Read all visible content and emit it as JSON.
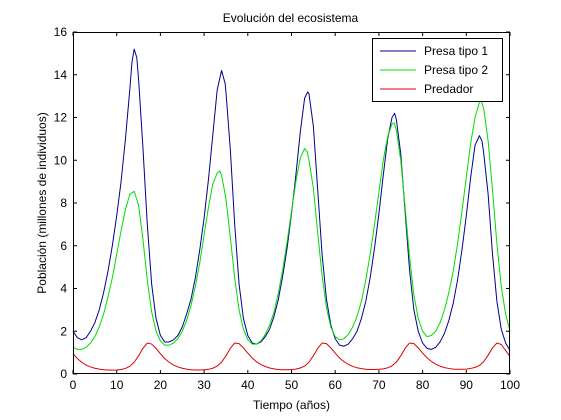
{
  "chart_data": {
    "type": "line",
    "title": "Evolución del ecosistema",
    "xlabel": "Tiempo (años)",
    "ylabel": "Población (millones de individuos)",
    "xlim": [
      0,
      100
    ],
    "ylim": [
      0,
      16
    ],
    "xticks": [
      0,
      10,
      20,
      30,
      40,
      50,
      60,
      70,
      80,
      90,
      100
    ],
    "yticks": [
      0,
      2,
      4,
      6,
      8,
      10,
      12,
      14,
      16
    ],
    "grid": false,
    "legend_position": "top-right",
    "series": [
      {
        "name": "Presa tipo 1",
        "color": "#00008b",
        "points": [
          [
            0,
            2.0
          ],
          [
            1,
            1.7
          ],
          [
            2,
            1.6
          ],
          [
            3,
            1.7
          ],
          [
            4,
            2.0
          ],
          [
            5,
            2.4
          ],
          [
            6,
            3.0
          ],
          [
            7,
            3.8
          ],
          [
            8,
            4.8
          ],
          [
            9,
            6.0
          ],
          [
            10,
            7.4
          ],
          [
            11,
            9.0
          ],
          [
            12,
            11.0
          ],
          [
            13,
            13.3
          ],
          [
            13.5,
            14.6
          ],
          [
            14,
            15.2
          ],
          [
            14.6,
            14.8
          ],
          [
            15,
            13.8
          ],
          [
            16,
            10.6
          ],
          [
            17,
            7.0
          ],
          [
            18,
            4.2
          ],
          [
            19,
            2.6
          ],
          [
            20,
            1.8
          ],
          [
            21,
            1.5
          ],
          [
            22,
            1.5
          ],
          [
            23,
            1.6
          ],
          [
            24,
            1.8
          ],
          [
            25,
            2.2
          ],
          [
            26,
            2.8
          ],
          [
            27,
            3.5
          ],
          [
            28,
            4.5
          ],
          [
            29,
            5.8
          ],
          [
            30,
            7.3
          ],
          [
            31,
            9.1
          ],
          [
            32,
            11.2
          ],
          [
            33,
            13.3
          ],
          [
            34,
            14.2
          ],
          [
            34.8,
            13.6
          ],
          [
            35,
            13.2
          ],
          [
            36,
            10.5
          ],
          [
            37,
            7.0
          ],
          [
            38,
            4.2
          ],
          [
            39,
            2.6
          ],
          [
            40,
            1.8
          ],
          [
            41,
            1.45
          ],
          [
            42,
            1.4
          ],
          [
            43,
            1.5
          ],
          [
            44,
            1.75
          ],
          [
            45,
            2.1
          ],
          [
            46,
            2.7
          ],
          [
            47,
            3.5
          ],
          [
            48,
            4.6
          ],
          [
            49,
            5.9
          ],
          [
            50,
            7.5
          ],
          [
            51,
            9.3
          ],
          [
            52,
            11.3
          ],
          [
            53,
            12.9
          ],
          [
            53.7,
            13.2
          ],
          [
            54,
            13.1
          ],
          [
            55,
            11.6
          ],
          [
            56,
            8.6
          ],
          [
            57,
            5.6
          ],
          [
            58,
            3.5
          ],
          [
            59,
            2.3
          ],
          [
            60,
            1.65
          ],
          [
            61,
            1.35
          ],
          [
            62,
            1.3
          ],
          [
            63,
            1.4
          ],
          [
            64,
            1.65
          ],
          [
            65,
            2.0
          ],
          [
            66,
            2.6
          ],
          [
            67,
            3.4
          ],
          [
            68,
            4.5
          ],
          [
            69,
            5.9
          ],
          [
            70,
            7.5
          ],
          [
            71,
            9.3
          ],
          [
            72,
            11.0
          ],
          [
            73,
            12.0
          ],
          [
            73.6,
            12.2
          ],
          [
            74,
            11.9
          ],
          [
            75,
            10.3
          ],
          [
            76,
            7.6
          ],
          [
            77,
            4.9
          ],
          [
            78,
            3.0
          ],
          [
            79,
            2.0
          ],
          [
            80,
            1.45
          ],
          [
            81,
            1.2
          ],
          [
            82,
            1.15
          ],
          [
            83,
            1.25
          ],
          [
            84,
            1.5
          ],
          [
            85,
            1.9
          ],
          [
            86,
            2.5
          ],
          [
            87,
            3.3
          ],
          [
            88,
            4.4
          ],
          [
            89,
            5.8
          ],
          [
            90,
            7.4
          ],
          [
            91,
            9.2
          ],
          [
            92,
            10.7
          ],
          [
            93,
            11.15
          ],
          [
            93.6,
            10.9
          ],
          [
            94,
            10.3
          ],
          [
            95,
            8.4
          ],
          [
            96,
            5.6
          ],
          [
            97,
            3.4
          ],
          [
            98,
            2.1
          ],
          [
            99,
            1.45
          ],
          [
            100,
            1.1
          ]
        ]
      },
      {
        "name": "Presa tipo 2",
        "color": "#00dd00",
        "points": [
          [
            0,
            1.25
          ],
          [
            1,
            1.15
          ],
          [
            2,
            1.15
          ],
          [
            3,
            1.25
          ],
          [
            4,
            1.45
          ],
          [
            5,
            1.75
          ],
          [
            6,
            2.2
          ],
          [
            7,
            2.8
          ],
          [
            8,
            3.6
          ],
          [
            9,
            4.5
          ],
          [
            10,
            5.6
          ],
          [
            11,
            6.7
          ],
          [
            12,
            7.7
          ],
          [
            13,
            8.4
          ],
          [
            14,
            8.55
          ],
          [
            15,
            7.9
          ],
          [
            16,
            6.3
          ],
          [
            17,
            4.4
          ],
          [
            18,
            2.9
          ],
          [
            19,
            2.0
          ],
          [
            20,
            1.55
          ],
          [
            21,
            1.35
          ],
          [
            22,
            1.35
          ],
          [
            23,
            1.45
          ],
          [
            24,
            1.65
          ],
          [
            25,
            2.0
          ],
          [
            26,
            2.5
          ],
          [
            27,
            3.2
          ],
          [
            28,
            4.1
          ],
          [
            29,
            5.2
          ],
          [
            30,
            6.5
          ],
          [
            31,
            7.8
          ],
          [
            32,
            8.9
          ],
          [
            33,
            9.4
          ],
          [
            33.6,
            9.5
          ],
          [
            34,
            9.3
          ],
          [
            35,
            8.2
          ],
          [
            36,
            6.4
          ],
          [
            37,
            4.5
          ],
          [
            38,
            3.0
          ],
          [
            39,
            2.1
          ],
          [
            40,
            1.6
          ],
          [
            41,
            1.4
          ],
          [
            42,
            1.4
          ],
          [
            43,
            1.55
          ],
          [
            44,
            1.85
          ],
          [
            45,
            2.3
          ],
          [
            46,
            2.9
          ],
          [
            47,
            3.8
          ],
          [
            48,
            4.9
          ],
          [
            49,
            6.2
          ],
          [
            50,
            7.6
          ],
          [
            51,
            9.0
          ],
          [
            52,
            10.1
          ],
          [
            53,
            10.55
          ],
          [
            53.6,
            10.4
          ],
          [
            54,
            10.0
          ],
          [
            55,
            8.7
          ],
          [
            56,
            6.6
          ],
          [
            57,
            4.6
          ],
          [
            58,
            3.1
          ],
          [
            59,
            2.2
          ],
          [
            60,
            1.75
          ],
          [
            61,
            1.6
          ],
          [
            62,
            1.65
          ],
          [
            63,
            1.85
          ],
          [
            64,
            2.2
          ],
          [
            65,
            2.7
          ],
          [
            66,
            3.4
          ],
          [
            67,
            4.4
          ],
          [
            68,
            5.6
          ],
          [
            69,
            7.0
          ],
          [
            70,
            8.5
          ],
          [
            71,
            10.0
          ],
          [
            72,
            11.1
          ],
          [
            73,
            11.7
          ],
          [
            73.5,
            11.75
          ],
          [
            74,
            11.4
          ],
          [
            75,
            10.0
          ],
          [
            76,
            7.8
          ],
          [
            77,
            5.5
          ],
          [
            78,
            3.7
          ],
          [
            79,
            2.6
          ],
          [
            80,
            2.0
          ],
          [
            81,
            1.75
          ],
          [
            82,
            1.8
          ],
          [
            83,
            2.0
          ],
          [
            84,
            2.4
          ],
          [
            85,
            3.0
          ],
          [
            86,
            3.8
          ],
          [
            87,
            4.8
          ],
          [
            88,
            6.1
          ],
          [
            89,
            7.6
          ],
          [
            90,
            9.2
          ],
          [
            91,
            10.8
          ],
          [
            92,
            12.0
          ],
          [
            93,
            12.7
          ],
          [
            93.4,
            12.8
          ],
          [
            94,
            12.4
          ],
          [
            95,
            10.9
          ],
          [
            96,
            8.6
          ],
          [
            97,
            6.1
          ],
          [
            98,
            4.1
          ],
          [
            99,
            2.8
          ],
          [
            100,
            2.0
          ]
        ]
      },
      {
        "name": "Predador",
        "color": "#dd0000",
        "points": [
          [
            0,
            0.95
          ],
          [
            1,
            0.72
          ],
          [
            2,
            0.55
          ],
          [
            3,
            0.42
          ],
          [
            4,
            0.33
          ],
          [
            5,
            0.27
          ],
          [
            6,
            0.23
          ],
          [
            7,
            0.2
          ],
          [
            8,
            0.19
          ],
          [
            9,
            0.18
          ],
          [
            10,
            0.19
          ],
          [
            11,
            0.21
          ],
          [
            12,
            0.26
          ],
          [
            13,
            0.36
          ],
          [
            14,
            0.55
          ],
          [
            15,
            0.85
          ],
          [
            16,
            1.2
          ],
          [
            17,
            1.45
          ],
          [
            18,
            1.4
          ],
          [
            19,
            1.2
          ],
          [
            20,
            0.95
          ],
          [
            21,
            0.72
          ],
          [
            22,
            0.55
          ],
          [
            23,
            0.42
          ],
          [
            24,
            0.33
          ],
          [
            25,
            0.27
          ],
          [
            26,
            0.23
          ],
          [
            27,
            0.2
          ],
          [
            28,
            0.19
          ],
          [
            29,
            0.19
          ],
          [
            30,
            0.2
          ],
          [
            31,
            0.22
          ],
          [
            32,
            0.27
          ],
          [
            33,
            0.37
          ],
          [
            34,
            0.55
          ],
          [
            35,
            0.85
          ],
          [
            36,
            1.2
          ],
          [
            37,
            1.45
          ],
          [
            38,
            1.42
          ],
          [
            39,
            1.22
          ],
          [
            40,
            0.98
          ],
          [
            41,
            0.75
          ],
          [
            42,
            0.57
          ],
          [
            43,
            0.44
          ],
          [
            44,
            0.35
          ],
          [
            45,
            0.28
          ],
          [
            46,
            0.24
          ],
          [
            47,
            0.21
          ],
          [
            48,
            0.2
          ],
          [
            49,
            0.2
          ],
          [
            50,
            0.21
          ],
          [
            51,
            0.23
          ],
          [
            52,
            0.28
          ],
          [
            53,
            0.37
          ],
          [
            54,
            0.55
          ],
          [
            55,
            0.85
          ],
          [
            56,
            1.2
          ],
          [
            57,
            1.45
          ],
          [
            58,
            1.42
          ],
          [
            59,
            1.22
          ],
          [
            60,
            0.98
          ],
          [
            61,
            0.75
          ],
          [
            62,
            0.58
          ],
          [
            63,
            0.45
          ],
          [
            64,
            0.36
          ],
          [
            65,
            0.29
          ],
          [
            66,
            0.25
          ],
          [
            67,
            0.22
          ],
          [
            68,
            0.21
          ],
          [
            69,
            0.21
          ],
          [
            70,
            0.22
          ],
          [
            71,
            0.24
          ],
          [
            72,
            0.29
          ],
          [
            73,
            0.38
          ],
          [
            74,
            0.56
          ],
          [
            75,
            0.85
          ],
          [
            76,
            1.2
          ],
          [
            77,
            1.45
          ],
          [
            78,
            1.42
          ],
          [
            79,
            1.22
          ],
          [
            80,
            0.98
          ],
          [
            81,
            0.76
          ],
          [
            82,
            0.59
          ],
          [
            83,
            0.46
          ],
          [
            84,
            0.37
          ],
          [
            85,
            0.3
          ],
          [
            86,
            0.26
          ],
          [
            87,
            0.23
          ],
          [
            88,
            0.22
          ],
          [
            89,
            0.22
          ],
          [
            90,
            0.23
          ],
          [
            91,
            0.26
          ],
          [
            92,
            0.31
          ],
          [
            93,
            0.4
          ],
          [
            94,
            0.58
          ],
          [
            95,
            0.88
          ],
          [
            96,
            1.22
          ],
          [
            97,
            1.45
          ],
          [
            98,
            1.38
          ],
          [
            99,
            1.1
          ],
          [
            100,
            0.82
          ]
        ]
      }
    ]
  }
}
